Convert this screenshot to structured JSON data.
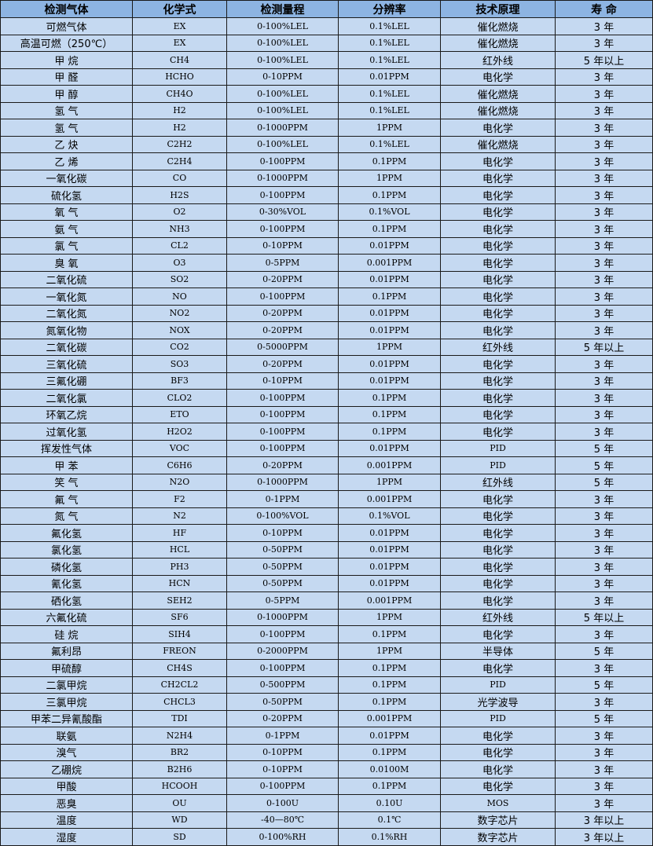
{
  "headers": [
    "检测气体",
    "化学式",
    "检测量程",
    "分辨率",
    "技术原理",
    "寿 命"
  ],
  "rows": [
    [
      "可燃气体",
      "EX",
      "0-100%LEL",
      "0.1%LEL",
      "催化燃烧",
      "3 年"
    ],
    [
      "高温可燃（250℃）",
      "EX",
      "0-100%LEL",
      "0.1%LEL",
      "催化燃烧",
      "3 年"
    ],
    [
      "甲 烷",
      "CH4",
      "0-100%LEL",
      "0.1%LEL",
      "红外线",
      "5 年以上"
    ],
    [
      "甲 醛",
      "HCHO",
      "0-10PPM",
      "0.01PPM",
      "电化学",
      "3 年"
    ],
    [
      "甲 醇",
      "CH4O",
      "0-100%LEL",
      "0.1%LEL",
      "催化燃烧",
      "3 年"
    ],
    [
      "氢 气",
      "H2",
      "0-100%LEL",
      "0.1%LEL",
      "催化燃烧",
      "3 年"
    ],
    [
      "氢 气",
      "H2",
      "0-1000PPM",
      "1PPM",
      "电化学",
      "3 年"
    ],
    [
      "乙 炔",
      "C2H2",
      "0-100%LEL",
      "0.1%LEL",
      "催化燃烧",
      "3 年"
    ],
    [
      "乙 烯",
      "C2H4",
      "0-100PPM",
      "0.1PPM",
      "电化学",
      "3 年"
    ],
    [
      "一氧化碳",
      "CO",
      "0-1000PPM",
      "1PPM",
      "电化学",
      "3 年"
    ],
    [
      "硫化氢",
      "H2S",
      "0-100PPM",
      "0.1PPM",
      "电化学",
      "3 年"
    ],
    [
      "氧 气",
      "O2",
      "0-30%VOL",
      "0.1%VOL",
      "电化学",
      "3 年"
    ],
    [
      "氨 气",
      "NH3",
      "0-100PPM",
      "0.1PPM",
      "电化学",
      "3 年"
    ],
    [
      "氯 气",
      "CL2",
      "0-10PPM",
      "0.01PPM",
      "电化学",
      "3 年"
    ],
    [
      "臭 氧",
      "O3",
      "0-5PPM",
      "0.001PPM",
      "电化学",
      "3 年"
    ],
    [
      "二氧化硫",
      "SO2",
      "0-20PPM",
      "0.01PPM",
      "电化学",
      "3 年"
    ],
    [
      "一氧化氮",
      "NO",
      "0-100PPM",
      "0.1PPM",
      "电化学",
      "3 年"
    ],
    [
      "二氧化氮",
      "NO2",
      "0-20PPM",
      "0.01PPM",
      "电化学",
      "3 年"
    ],
    [
      "氮氧化物",
      "NOX",
      "0-20PPM",
      "0.01PPM",
      "电化学",
      "3 年"
    ],
    [
      "二氧化碳",
      "CO2",
      "0-5000PPM",
      "1PPM",
      "红外线",
      "5 年以上"
    ],
    [
      "三氧化硫",
      "SO3",
      "0-20PPM",
      "0.01PPM",
      "电化学",
      "3 年"
    ],
    [
      "三氟化硼",
      "BF3",
      "0-10PPM",
      "0.01PPM",
      "电化学",
      "3 年"
    ],
    [
      "二氧化氯",
      "CLO2",
      "0-100PPM",
      "0.1PPM",
      "电化学",
      "3 年"
    ],
    [
      "环氧乙烷",
      "ETO",
      "0-100PPM",
      "0.1PPM",
      "电化学",
      "3 年"
    ],
    [
      "过氧化氢",
      "H2O2",
      "0-100PPM",
      "0.1PPM",
      "电化学",
      "3 年"
    ],
    [
      "挥发性气体",
      "VOC",
      "0-100PPM",
      "0.01PPM",
      "PID",
      "5 年"
    ],
    [
      "甲 苯",
      "C6H6",
      "0-20PPM",
      "0.001PPM",
      "PID",
      "5 年"
    ],
    [
      "笑 气",
      "N2O",
      "0-1000PPM",
      "1PPM",
      "红外线",
      "5 年"
    ],
    [
      "氟 气",
      "F2",
      "0-1PPM",
      "0.001PPM",
      "电化学",
      "3 年"
    ],
    [
      "氮 气",
      "N2",
      "0-100%VOL",
      "0.1%VOL",
      "电化学",
      "3 年"
    ],
    [
      "氟化氢",
      "HF",
      "0-10PPM",
      "0.01PPM",
      "电化学",
      "3 年"
    ],
    [
      "氯化氢",
      "HCL",
      "0-50PPM",
      "0.01PPM",
      "电化学",
      "3 年"
    ],
    [
      "磷化氢",
      "PH3",
      "0-50PPM",
      "0.01PPM",
      "电化学",
      "3 年"
    ],
    [
      "氰化氢",
      "HCN",
      "0-50PPM",
      "0.01PPM",
      "电化学",
      "3 年"
    ],
    [
      "硒化氢",
      "SEH2",
      "0-5PPM",
      "0.001PPM",
      "电化学",
      "3 年"
    ],
    [
      "六氟化硫",
      "SF6",
      "0-1000PPM",
      "1PPM",
      "红外线",
      "5 年以上"
    ],
    [
      "硅 烷",
      "SIH4",
      "0-100PPM",
      "0.1PPM",
      "电化学",
      "3 年"
    ],
    [
      "氟利昂",
      "FREON",
      "0-2000PPM",
      "1PPM",
      "半导体",
      "5 年"
    ],
    [
      "甲硫醇",
      "CH4S",
      "0-100PPM",
      "0.1PPM",
      "电化学",
      "3 年"
    ],
    [
      "二氯甲烷",
      "CH2CL2",
      "0-500PPM",
      "0.1PPM",
      "PID",
      "5 年"
    ],
    [
      "三氯甲烷",
      "CHCL3",
      "0-50PPM",
      "0.1PPM",
      "光学波导",
      "3 年"
    ],
    [
      "甲苯二异氰酸酯",
      "TDI",
      "0-20PPM",
      "0.001PPM",
      "PID",
      "5 年"
    ],
    [
      "联氨",
      "N2H4",
      "0-1PPM",
      "0.01PPM",
      "电化学",
      "3 年"
    ],
    [
      "溴气",
      "BR2",
      "0-10PPM",
      "0.1PPM",
      "电化学",
      "3 年"
    ],
    [
      "乙硼烷",
      "B2H6",
      "0-10PPM",
      "0.0100M",
      "电化学",
      "3 年"
    ],
    [
      "甲酸",
      "HCOOH",
      "0-100PPM",
      "0.1PPM",
      "电化学",
      "3 年"
    ],
    [
      "恶臭",
      "OU",
      "0-100U",
      "0.10U",
      "MOS",
      "3 年"
    ],
    [
      "温度",
      "WD",
      "-40—80℃",
      "0.1℃",
      "数字芯片",
      "3 年以上"
    ],
    [
      "湿度",
      "SD",
      "0-100%RH",
      "0.1%RH",
      "数字芯片",
      "3 年以上"
    ]
  ],
  "colors": {
    "header_bg": "#8db4e2",
    "row_bg": "#c5d9f1",
    "border": "#1a1a1a"
  }
}
